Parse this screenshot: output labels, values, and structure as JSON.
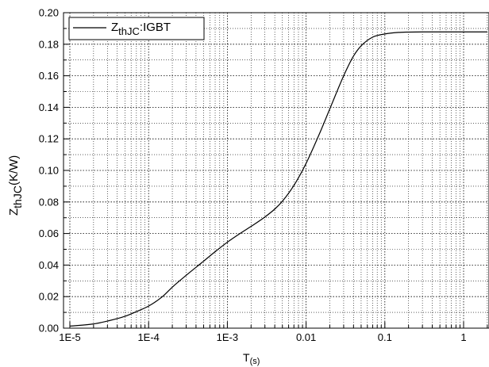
{
  "chart_data": {
    "type": "line",
    "xscale": "log",
    "xlim": [
      1e-05,
      2
    ],
    "ylim": [
      0.0,
      0.2
    ],
    "grid": true,
    "legend_position": "top-left",
    "xlabel_main": "T",
    "xlabel_sub": "(s)",
    "ylabel_main": "Z",
    "ylabel_sub": "thJC",
    "ylabel_unit": "(K/W)",
    "x_ticks": [
      {
        "value": 1e-05,
        "label": "1E-5"
      },
      {
        "value": 0.0001,
        "label": "1E-4"
      },
      {
        "value": 0.001,
        "label": "1E-3"
      },
      {
        "value": 0.01,
        "label": "0.01"
      },
      {
        "value": 0.1,
        "label": "0.1"
      },
      {
        "value": 1,
        "label": "1"
      }
    ],
    "y_ticks": [
      {
        "value": 0.0,
        "label": "0.00"
      },
      {
        "value": 0.02,
        "label": "0.02"
      },
      {
        "value": 0.04,
        "label": "0.04"
      },
      {
        "value": 0.06,
        "label": "0.06"
      },
      {
        "value": 0.08,
        "label": "0.08"
      },
      {
        "value": 0.1,
        "label": "0.10"
      },
      {
        "value": 0.12,
        "label": "0.12"
      },
      {
        "value": 0.14,
        "label": "0.14"
      },
      {
        "value": 0.16,
        "label": "0.16"
      },
      {
        "value": 0.18,
        "label": "0.18"
      },
      {
        "value": 0.2,
        "label": "0.20"
      }
    ],
    "series": [
      {
        "name_main": "Z",
        "name_sub": "thJC",
        "name_suffix": ":IGBT",
        "color": "#000000",
        "x": [
          1e-05,
          2e-05,
          3e-05,
          5e-05,
          7e-05,
          0.0001,
          0.00015,
          0.0002,
          0.0003,
          0.0005,
          0.0007,
          0.001,
          0.0015,
          0.002,
          0.003,
          0.004,
          0.005,
          0.007,
          0.01,
          0.015,
          0.02,
          0.03,
          0.04,
          0.05,
          0.07,
          0.1,
          0.15,
          0.2,
          0.3,
          0.5,
          1,
          2
        ],
        "y": [
          0.0013,
          0.0027,
          0.0045,
          0.0075,
          0.0105,
          0.014,
          0.02,
          0.026,
          0.0335,
          0.0425,
          0.0485,
          0.0545,
          0.0605,
          0.0645,
          0.0705,
          0.0755,
          0.0805,
          0.0905,
          0.1045,
          0.124,
          0.139,
          0.16,
          0.1725,
          0.179,
          0.1845,
          0.1865,
          0.1875,
          0.1877,
          0.1878,
          0.1878,
          0.1878,
          0.1878
        ]
      }
    ]
  }
}
